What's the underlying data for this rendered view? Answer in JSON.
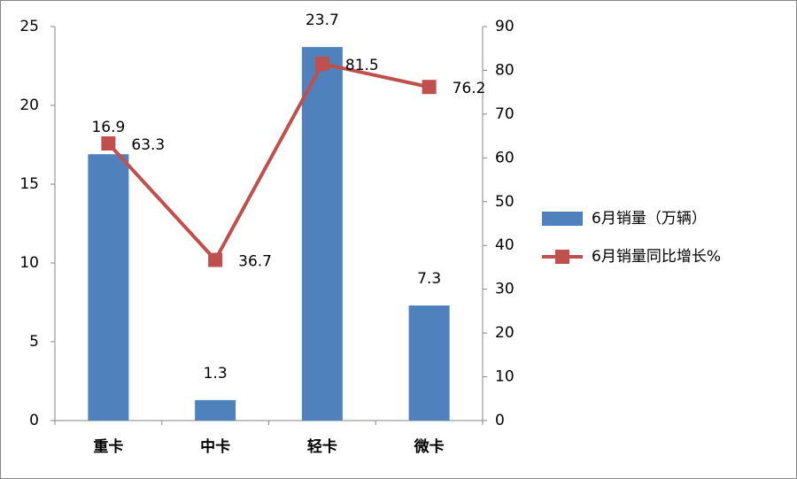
{
  "chart_data": {
    "type": "bar",
    "categories": [
      "重卡",
      "中卡",
      "轻卡",
      "微卡"
    ],
    "series": [
      {
        "name": "6月销量（万辆）",
        "type": "bar",
        "color": "#4f81bd",
        "values": [
          16.9,
          1.3,
          23.7,
          7.3
        ]
      },
      {
        "name": "6月销量同比增长%",
        "type": "line",
        "axis": "y2",
        "color": "#c0504d",
        "values": [
          63.3,
          36.7,
          81.5,
          76.2
        ]
      }
    ],
    "ylim": [
      0,
      25
    ],
    "yticks": [
      0,
      5,
      10,
      15,
      20,
      25
    ],
    "y2lim": [
      0,
      90
    ],
    "y2ticks": [
      0,
      10,
      20,
      30,
      40,
      50,
      60,
      70,
      80,
      90
    ],
    "grid": false,
    "legend": "right"
  }
}
